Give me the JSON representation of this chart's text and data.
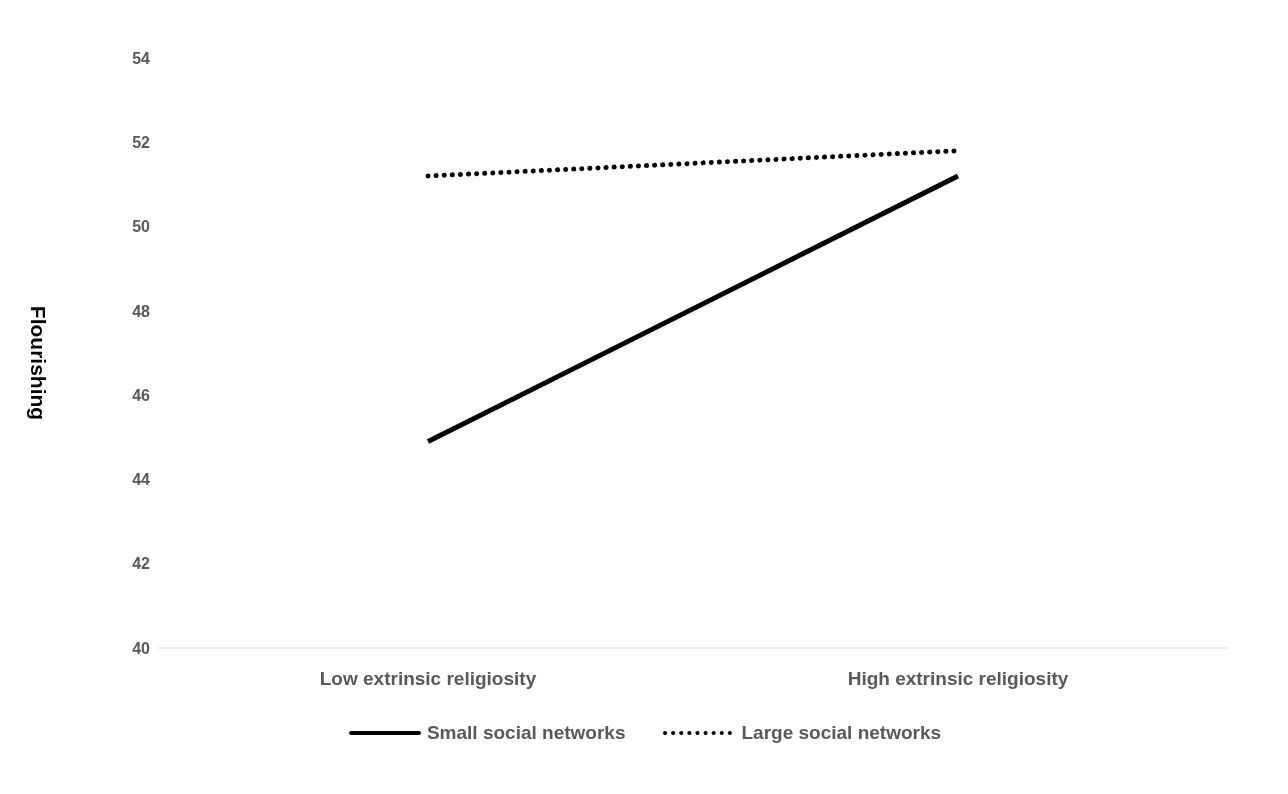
{
  "chart_data": {
    "type": "line",
    "ylabel": "Flourishing",
    "categories": [
      "Low extrinsic religiosity",
      "High extrinsic religiosity"
    ],
    "series": [
      {
        "name": "Small social networks",
        "color": "#000000",
        "values": [
          44.9,
          51.2
        ],
        "line_style": "solid"
      },
      {
        "name": "Large social networks",
        "color": "#000000",
        "values": [
          51.2,
          51.8
        ],
        "line_style": "dotted"
      }
    ],
    "ylim": [
      40,
      54
    ],
    "yticks": [
      40,
      42,
      44,
      46,
      48,
      50,
      52,
      54
    ],
    "grid": false,
    "legend": "bottom",
    "marker": "none"
  }
}
